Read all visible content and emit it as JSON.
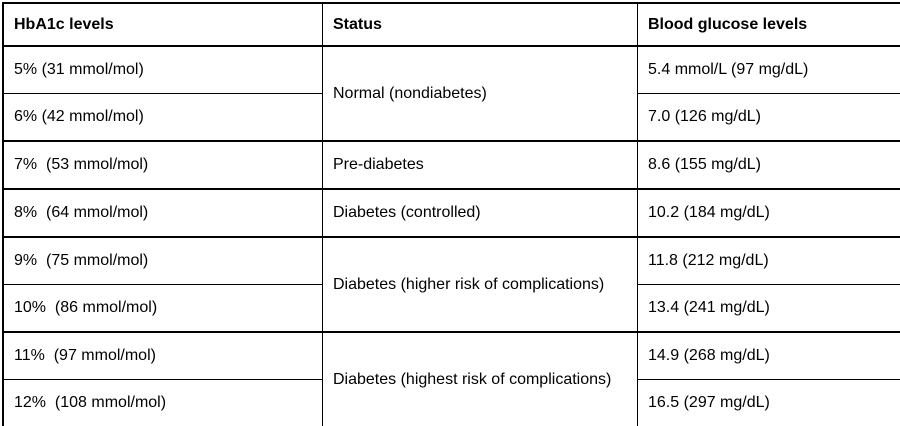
{
  "table": {
    "headers": {
      "hba1c": "HbA1c levels",
      "status": "Status",
      "glucose": "Blood glucose levels"
    },
    "rows": [
      {
        "hba1c": "5% (31 mmol/mol)",
        "status": "Normal (nondiabetes)",
        "glucose": "5.4 mmol/L (97 mg/dL)"
      },
      {
        "hba1c": "6% (42 mmol/mol)",
        "glucose": "7.0 (126 mg/dL)"
      },
      {
        "hba1c": "7%  (53 mmol/mol)",
        "status": "Pre-diabetes",
        "glucose": "8.6 (155 mg/dL)"
      },
      {
        "hba1c": "8%  (64 mmol/mol)",
        "status": "Diabetes (controlled)",
        "glucose": "10.2 (184 mg/dL)"
      },
      {
        "hba1c": "9%  (75 mmol/mol)",
        "status": "Diabetes (higher risk of complications)",
        "glucose": "11.8 (212 mg/dL)"
      },
      {
        "hba1c": "10%  (86 mmol/mol)",
        "glucose": "13.4 (241 mg/dL)"
      },
      {
        "hba1c": "11%  (97 mmol/mol)",
        "status": "Diabetes (highest risk of complications)",
        "glucose": "14.9 (268 mg/dL)"
      },
      {
        "hba1c": "12%  (108 mmol/mol)",
        "glucose": "16.5 (297 mg/dL)"
      }
    ],
    "colors": {
      "border": "#000000",
      "background": "#ffffff",
      "text": "#000000"
    }
  }
}
